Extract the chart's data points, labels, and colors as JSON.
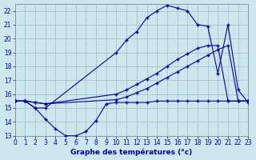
{
  "xlabel": "Graphe des températures (°c)",
  "bg_color": "#cce8ee",
  "grid_color": "#aacccc",
  "line_color": "#0000aa",
  "xlim": [
    0,
    23
  ],
  "ylim": [
    13,
    22.5
  ],
  "xticks": [
    0,
    1,
    2,
    3,
    4,
    5,
    6,
    7,
    8,
    9,
    10,
    11,
    12,
    13,
    14,
    15,
    16,
    17,
    18,
    19,
    20,
    21,
    22,
    23
  ],
  "yticks": [
    13,
    14,
    15,
    16,
    17,
    18,
    19,
    20,
    21,
    22
  ],
  "series": [
    {
      "x": [
        0,
        1,
        2,
        3,
        10,
        11,
        12,
        13,
        14,
        15,
        16,
        17,
        18,
        19,
        20,
        21,
        22,
        23
      ],
      "y": [
        15.5,
        15.5,
        15.0,
        15.0,
        19.0,
        19.9,
        20.5,
        21.5,
        22.0,
        22.4,
        22.2,
        22.0,
        21.0,
        20.9,
        17.5,
        21.0,
        16.3,
        15.4
      ]
    },
    {
      "x": [
        0,
        1,
        2,
        3,
        10,
        11,
        12,
        13,
        14,
        15,
        16,
        17,
        18,
        19,
        20,
        21,
        22,
        23
      ],
      "y": [
        15.5,
        15.5,
        15.4,
        15.3,
        16.0,
        16.3,
        16.7,
        17.1,
        17.5,
        18.0,
        18.5,
        18.9,
        19.3,
        19.5,
        19.5,
        15.5,
        15.5,
        15.5
      ]
    },
    {
      "x": [
        0,
        1,
        2,
        3,
        10,
        11,
        12,
        13,
        14,
        15,
        16,
        17,
        18,
        19,
        20,
        21,
        22,
        23
      ],
      "y": [
        15.5,
        15.5,
        15.4,
        15.3,
        15.6,
        15.8,
        16.1,
        16.4,
        16.8,
        17.2,
        17.6,
        18.0,
        18.4,
        18.8,
        19.2,
        19.5,
        15.5,
        15.5
      ]
    },
    {
      "x": [
        0,
        1,
        2,
        3,
        4,
        5,
        6,
        7,
        8,
        9,
        10,
        11,
        12,
        13,
        14,
        15,
        16,
        17,
        18,
        19,
        20,
        21,
        22,
        23
      ],
      "y": [
        15.5,
        15.5,
        15.0,
        14.2,
        13.5,
        13.0,
        13.0,
        13.3,
        14.1,
        15.3,
        15.4,
        15.4,
        15.4,
        15.4,
        15.5,
        15.5,
        15.5,
        15.5,
        15.5,
        15.5,
        15.5,
        15.5,
        15.5,
        15.5
      ]
    }
  ]
}
